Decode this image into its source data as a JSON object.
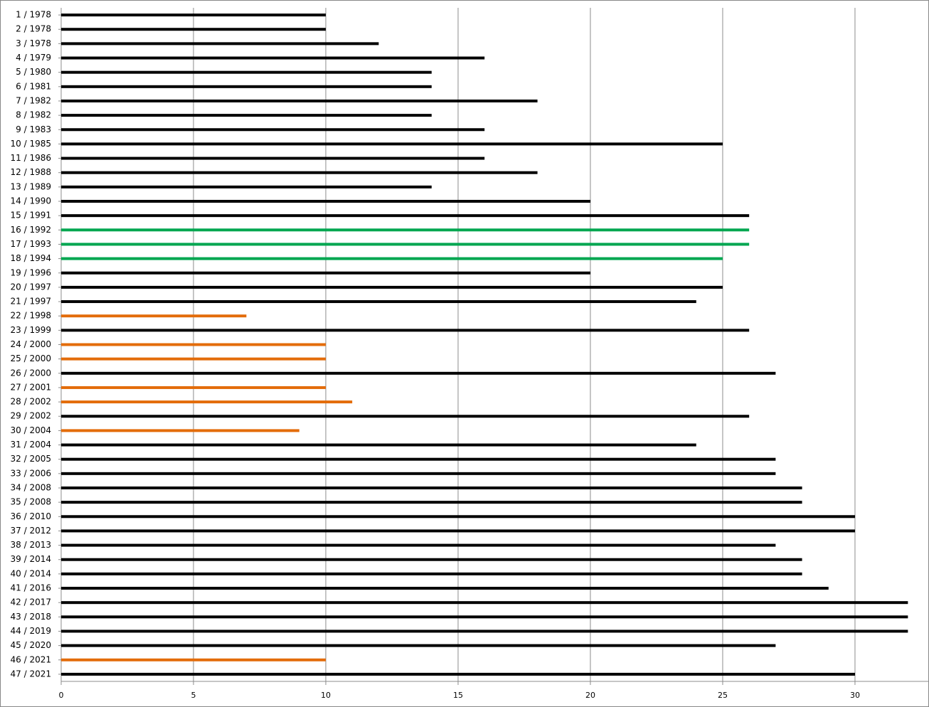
{
  "chart_data": {
    "type": "bar",
    "orientation": "horizontal",
    "categories": [
      "1 / 1978",
      "2 / 1978",
      "3 / 1978",
      "4 / 1979",
      "5 / 1980",
      "6 / 1981",
      "7 / 1982",
      "8 / 1982",
      "9 / 1983",
      "10 / 1985",
      "11 / 1986",
      "12 / 1988",
      "13 / 1989",
      "14 / 1990",
      "15 / 1991",
      "16 / 1992",
      "17 / 1993",
      "18 / 1994",
      "19 / 1996",
      "20 / 1997",
      "21 / 1997",
      "22 / 1998",
      "23 / 1999",
      "24 / 2000",
      "25 / 2000",
      "26 / 2000",
      "27 / 2001",
      "28 / 2002",
      "29 / 2002",
      "30 / 2004",
      "31 / 2004",
      "32 / 2005",
      "33 / 2006",
      "34 / 2008",
      "35 / 2008",
      "36 / 2010",
      "37 / 2012",
      "38 / 2013",
      "39 / 2014",
      "40 / 2014",
      "41 / 2016",
      "42 / 2017",
      "43 / 2018",
      "44 / 2019",
      "45 / 2020",
      "46 / 2021",
      "47 / 2021"
    ],
    "values": [
      10,
      10,
      12,
      16,
      14,
      14,
      18,
      14,
      16,
      25,
      16,
      18,
      14,
      20,
      26,
      26,
      26,
      25,
      20,
      25,
      24,
      7,
      26,
      10,
      10,
      27,
      10,
      11,
      26,
      9,
      24,
      27,
      27,
      28,
      28,
      30,
      30,
      27,
      28,
      28,
      29,
      32,
      32,
      32,
      27,
      10,
      30
    ],
    "colors": [
      "#000000",
      "#000000",
      "#000000",
      "#000000",
      "#000000",
      "#000000",
      "#000000",
      "#000000",
      "#000000",
      "#000000",
      "#000000",
      "#000000",
      "#000000",
      "#000000",
      "#000000",
      "#00a650",
      "#00a650",
      "#00a650",
      "#000000",
      "#000000",
      "#000000",
      "#e36c0a",
      "#000000",
      "#e36c0a",
      "#e36c0a",
      "#000000",
      "#e36c0a",
      "#e36c0a",
      "#000000",
      "#e36c0a",
      "#000000",
      "#000000",
      "#000000",
      "#000000",
      "#000000",
      "#000000",
      "#000000",
      "#000000",
      "#000000",
      "#000000",
      "#000000",
      "#000000",
      "#000000",
      "#000000",
      "#000000",
      "#e36c0a",
      "#000000"
    ],
    "xlim": [
      0,
      32.77
    ],
    "xticks": [
      0,
      5,
      10,
      15,
      20,
      25,
      30
    ],
    "grid": true
  }
}
